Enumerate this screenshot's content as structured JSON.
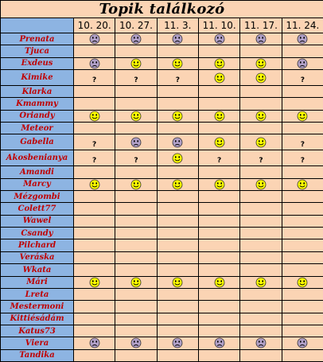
{
  "title": "Topik találkozó",
  "dates": [
    "10. 20.",
    "10. 27.",
    "11. 3.",
    "11. 10.",
    "11. 17.",
    "11. 24."
  ],
  "legend_colors": {
    "happy": "#ffff00",
    "sad": "#b1a0c7",
    "name_column": "#8db4e2",
    "cell_background": "#fbd4b4",
    "name_text": "#c00000"
  },
  "rows": [
    {
      "name": "Prenata",
      "cells": [
        "sad",
        "sad",
        "sad",
        "sad",
        "sad",
        "sad"
      ]
    },
    {
      "name": "Tjuca",
      "cells": [
        "",
        "",
        "",
        "",
        "",
        ""
      ]
    },
    {
      "name": "Exdeus",
      "cells": [
        "sad",
        "happy",
        "happy",
        "happy",
        "happy",
        "sad"
      ]
    },
    {
      "name": "Kimike",
      "cells": [
        "?",
        "?",
        "?",
        "happy",
        "happy",
        "?"
      ]
    },
    {
      "name": "Klarka",
      "cells": [
        "",
        "",
        "",
        "",
        "",
        ""
      ]
    },
    {
      "name": "Kmammy",
      "cells": [
        "",
        "",
        "",
        "",
        "",
        ""
      ]
    },
    {
      "name": "Oriandy",
      "cells": [
        "happy",
        "happy",
        "happy",
        "happy",
        "happy",
        "happy"
      ]
    },
    {
      "name": "Meteor",
      "cells": [
        "",
        "",
        "",
        "",
        "",
        ""
      ]
    },
    {
      "name": "Gabella",
      "cells": [
        "?",
        "sad",
        "sad",
        "happy",
        "happy",
        "?"
      ]
    },
    {
      "name": "Akosbenianya",
      "cells": [
        "?",
        "?",
        "happy",
        "?",
        "?",
        "?"
      ]
    },
    {
      "name": "Amandi",
      "cells": [
        "",
        "",
        "",
        "",
        "",
        ""
      ]
    },
    {
      "name": "Marcy",
      "cells": [
        "happy",
        "happy",
        "happy",
        "happy",
        "happy",
        "happy"
      ]
    },
    {
      "name": "Mézgombi",
      "cells": [
        "",
        "",
        "",
        "",
        "",
        ""
      ]
    },
    {
      "name": "Colett77",
      "cells": [
        "",
        "",
        "",
        "",
        "",
        ""
      ]
    },
    {
      "name": "Wawel",
      "cells": [
        "",
        "",
        "",
        "",
        "",
        ""
      ]
    },
    {
      "name": "Csandy",
      "cells": [
        "",
        "",
        "",
        "",
        "",
        ""
      ]
    },
    {
      "name": "Pilchard",
      "cells": [
        "",
        "",
        "",
        "",
        "",
        ""
      ]
    },
    {
      "name": "Veráska",
      "cells": [
        "",
        "",
        "",
        "",
        "",
        ""
      ]
    },
    {
      "name": "Wkata",
      "cells": [
        "",
        "",
        "",
        "",
        "",
        ""
      ]
    },
    {
      "name": "Mári",
      "cells": [
        "happy",
        "happy",
        "happy",
        "happy",
        "happy",
        "happy"
      ]
    },
    {
      "name": "Lreta",
      "cells": [
        "",
        "",
        "",
        "",
        "",
        ""
      ]
    },
    {
      "name": "Mestermoni",
      "cells": [
        "",
        "",
        "",
        "",
        "",
        ""
      ]
    },
    {
      "name": "Kittiésádám",
      "cells": [
        "",
        "",
        "",
        "",
        "",
        ""
      ]
    },
    {
      "name": "Katus73",
      "cells": [
        "",
        "",
        "",
        "",
        "",
        ""
      ]
    },
    {
      "name": "Viera",
      "cells": [
        "sad",
        "sad",
        "sad",
        "sad",
        "sad",
        "sad"
      ]
    },
    {
      "name": "Tandika",
      "cells": [
        "",
        "",
        "",
        "",
        "",
        ""
      ]
    }
  ]
}
